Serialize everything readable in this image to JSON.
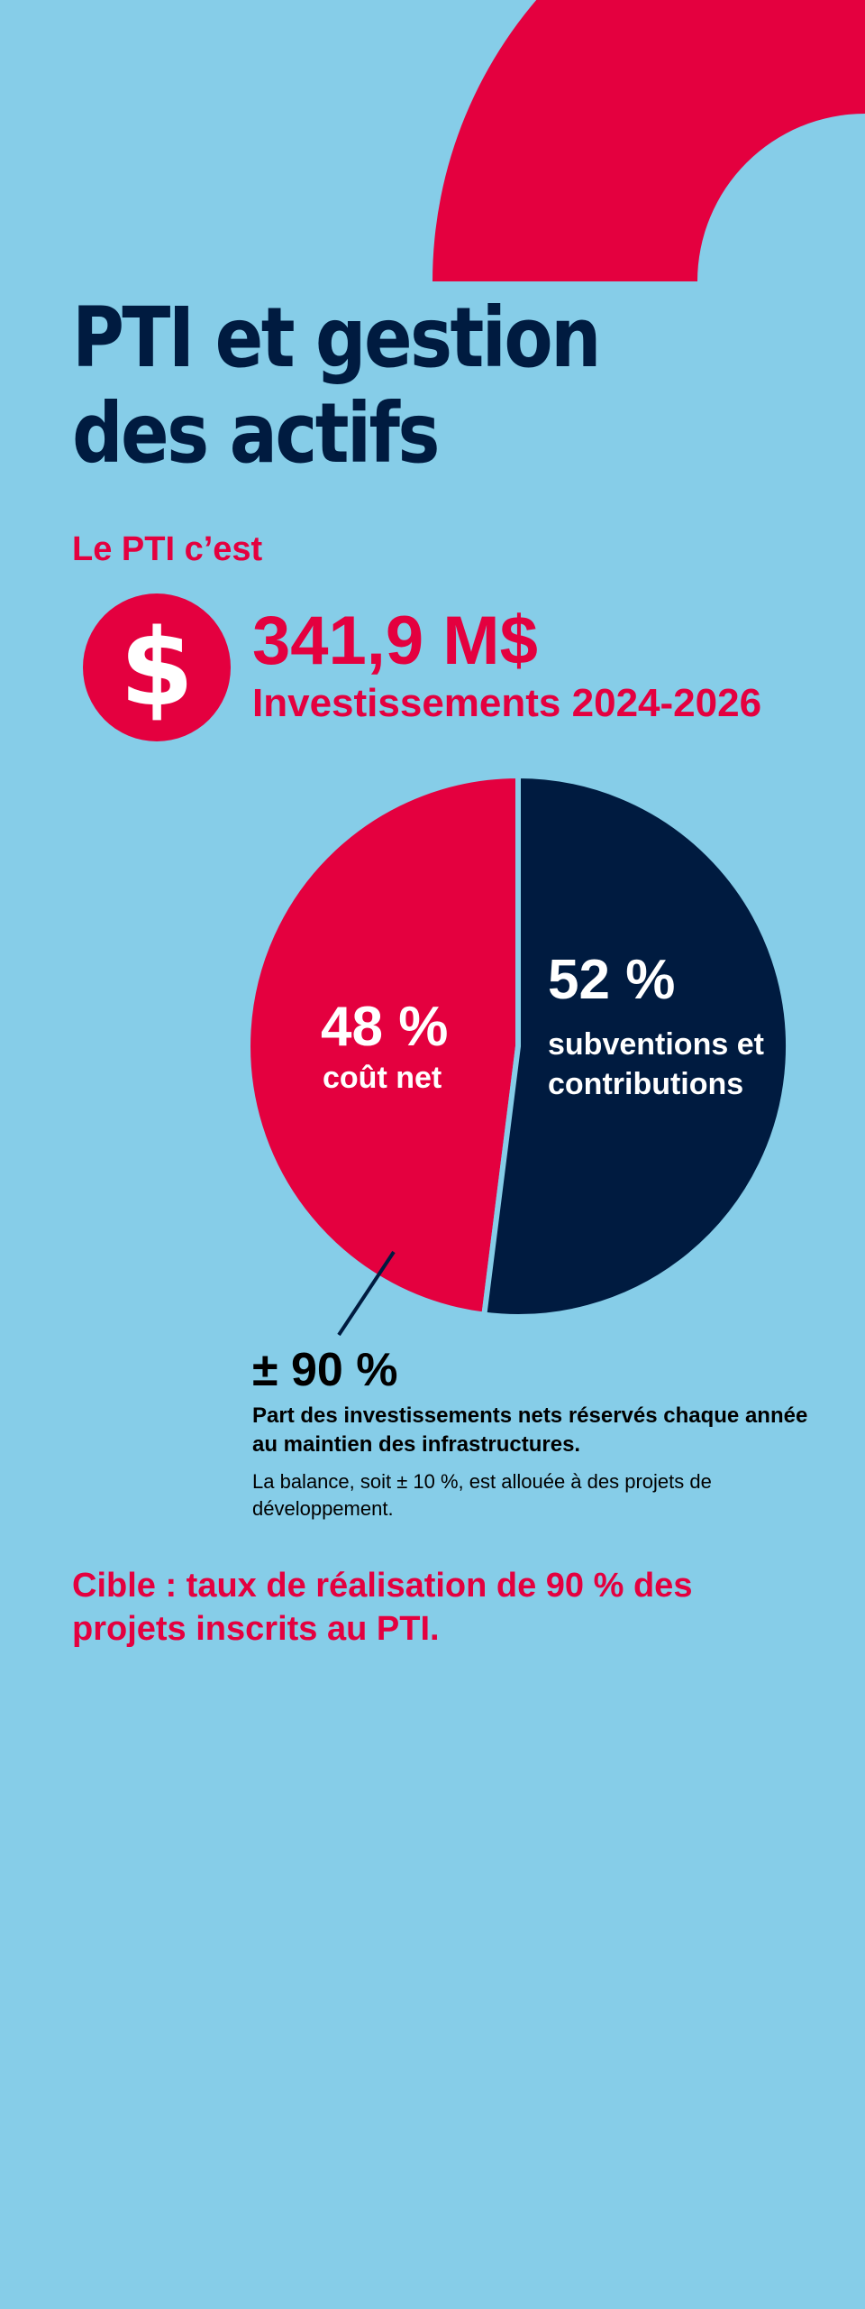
{
  "colors": {
    "background": "#86CDE8",
    "accent_red": "#E4003F",
    "navy": "#001B40",
    "text_black": "#000000",
    "white": "#FFFFFF"
  },
  "page": {
    "title_line1": "PTI et gestion",
    "title_line2": "des actifs",
    "intro": "Le PTI c’est",
    "dollar_glyph": "$",
    "dollar_icon": "dollar-circle-icon",
    "amount": "341,9 M$",
    "amount_subtitle": "Investissements 2024-2026",
    "maintenance_share": "± 90 %",
    "maintenance_desc": "Part des investissements nets réservés chaque année au maintien des infrastructures.",
    "maintenance_note": "La balance, soit ± 10 %, est allouée à des projets de développement.",
    "target": "Cible : taux de réalisation de 90 % des projets inscrits au PTI."
  },
  "chart_data": {
    "type": "pie",
    "title": "",
    "slices": [
      {
        "label": "coût net",
        "value": 48,
        "display": "48 %",
        "color": "#E4003F"
      },
      {
        "label": "subventions et contributions",
        "value": 52,
        "display": "52 %",
        "color": "#001B40"
      }
    ]
  }
}
